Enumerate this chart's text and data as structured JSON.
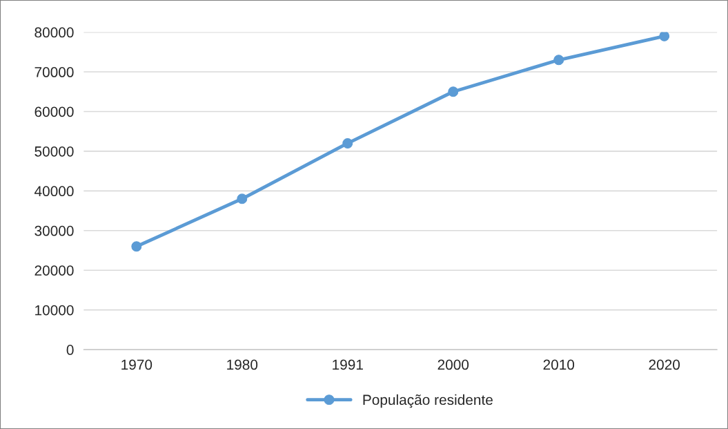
{
  "chart_data": {
    "type": "line",
    "categories": [
      "1970",
      "1980",
      "1991",
      "2000",
      "2010",
      "2020"
    ],
    "series": [
      {
        "name": "População residente",
        "color": "#5b9bd5",
        "values": [
          26000,
          38000,
          52000,
          65000,
          73000,
          79000
        ]
      }
    ],
    "ylim": [
      0,
      80000
    ],
    "yticks": [
      0,
      10000,
      20000,
      30000,
      40000,
      50000,
      60000,
      70000,
      80000
    ],
    "grid": "y",
    "legend": "bottom",
    "marker": "circle",
    "line_style": "solid"
  }
}
